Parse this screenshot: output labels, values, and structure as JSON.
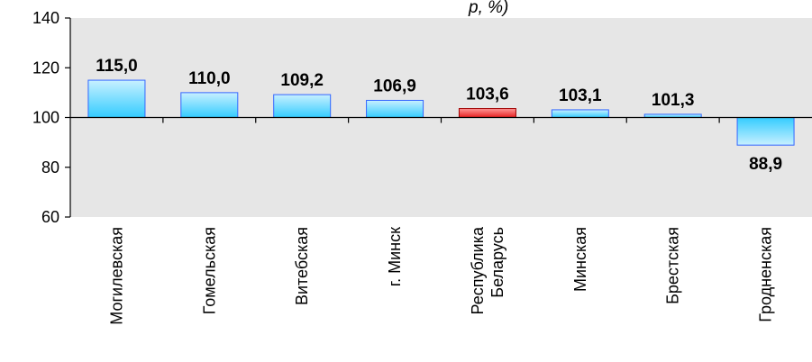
{
  "chart_data": {
    "type": "bar",
    "title_fragment": "р, %)",
    "categories": [
      [
        "Могилевская"
      ],
      [
        "Гомельская"
      ],
      [
        "Витебская"
      ],
      [
        "г. Минск"
      ],
      [
        "Республика",
        "Беларусь"
      ],
      [
        "Минская"
      ],
      [
        "Брестская"
      ],
      [
        "Гродненская"
      ]
    ],
    "values": [
      115.0,
      110.0,
      109.2,
      106.9,
      103.6,
      103.1,
      101.3,
      88.9
    ],
    "value_labels": [
      "115,0",
      "110,0",
      "109,2",
      "106,9",
      "103,6",
      "103,1",
      "101,3",
      "88,9"
    ],
    "baseline": 100,
    "ylim": [
      60,
      140
    ],
    "yticks": [
      60,
      80,
      100,
      120,
      140
    ],
    "highlight_index": 4,
    "colors": {
      "plot_background": "#e6e6e6",
      "bar_top": "#c8f0ff",
      "bar_bottom": "#33ccff",
      "bar_border": "#3366ff",
      "highlight_top": "#ff9999",
      "highlight_bottom": "#e61e1e",
      "highlight_border": "#a00000"
    }
  }
}
